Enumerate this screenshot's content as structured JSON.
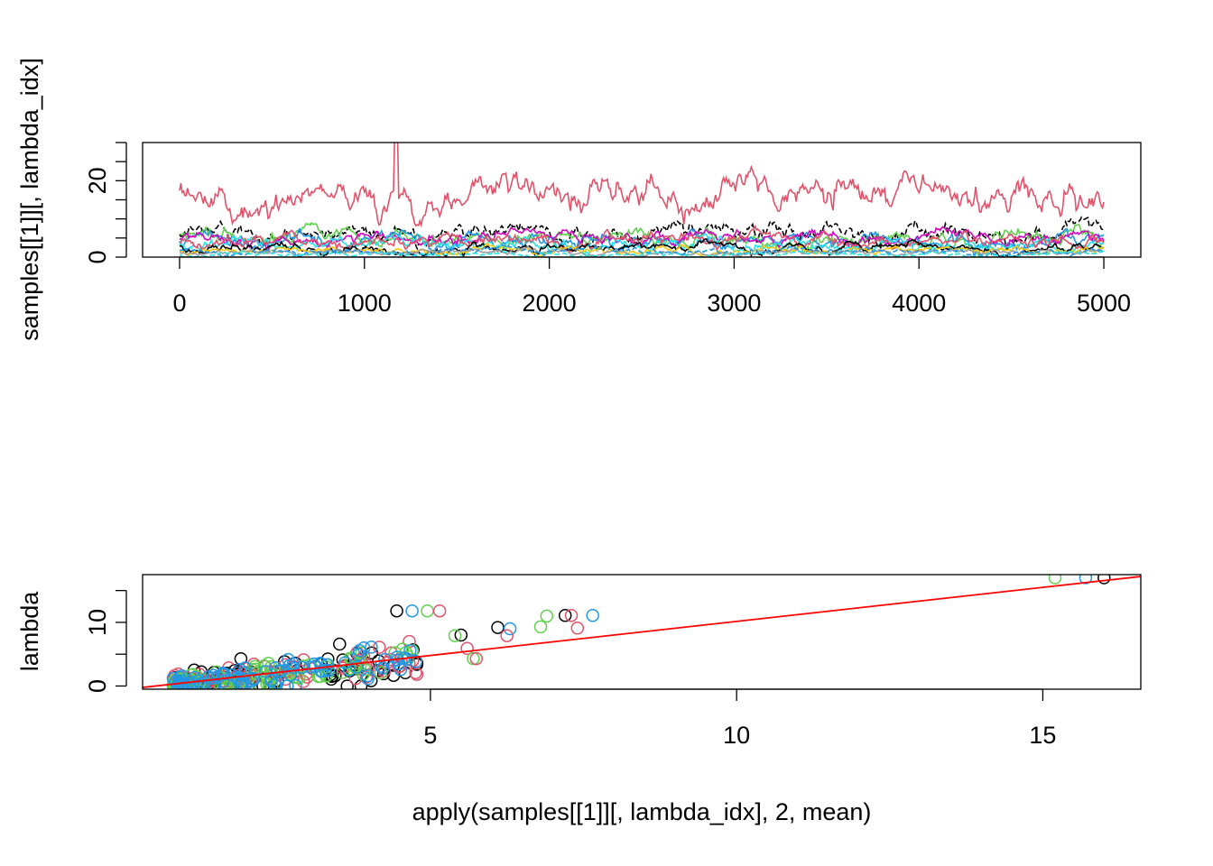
{
  "chart_data": [
    {
      "type": "line",
      "title": "",
      "xlabel": "",
      "ylabel": "samples[[1]][, lambda_idx]",
      "xlim": [
        -200,
        5200
      ],
      "ylim": [
        0,
        30
      ],
      "x_ticks": [
        0,
        1000,
        2000,
        3000,
        4000,
        5000
      ],
      "x_tick_labels": [
        "0",
        "1000",
        "2000",
        "3000",
        "4000",
        "5000"
      ],
      "y_ticks": [
        0,
        20
      ],
      "y_tick_labels": [
        "0",
        "20"
      ],
      "y_minor_ticks": [
        0,
        5,
        10,
        15,
        20,
        25,
        30
      ],
      "grid": false,
      "legend": "none",
      "iterations": 5000,
      "series": [
        {
          "color": "#DF536B",
          "dash": "solid",
          "mean": 15.5,
          "sd": 3.6,
          "min": 6.5,
          "max": 33,
          "peak_at": 1170
        },
        {
          "color": "#000000",
          "dash": "dashed",
          "mean": 6.4,
          "sd": 2.0,
          "min": 1.5,
          "max": 15
        },
        {
          "color": "#61D04F",
          "dash": "solid",
          "mean": 5.2,
          "sd": 1.8,
          "min": 0.5,
          "max": 12
        },
        {
          "color": "#2297E6",
          "dash": "solid",
          "mean": 4.4,
          "sd": 1.5,
          "min": 0.5,
          "max": 11
        },
        {
          "color": "#CD0BBC",
          "dash": "solid",
          "mean": 5.0,
          "sd": 1.4,
          "min": 0.5,
          "max": 11
        },
        {
          "color": "#28E2E5",
          "dash": "solid",
          "mean": 3.2,
          "sd": 1.2,
          "min": 0.2,
          "max": 8
        },
        {
          "color": "#DF536B",
          "dash": "solid",
          "mean": 4.2,
          "sd": 1.4,
          "min": 0.5,
          "max": 10
        },
        {
          "color": "#000000",
          "dash": "solid",
          "mean": 2.4,
          "sd": 1.0,
          "min": 0.2,
          "max": 7
        },
        {
          "color": "#F5C710",
          "dash": "solid",
          "mean": 1.8,
          "sd": 0.8,
          "min": 0.1,
          "max": 5
        },
        {
          "color": "#9E9E9E",
          "dash": "solid",
          "mean": 1.2,
          "sd": 0.6,
          "min": 0.1,
          "max": 4
        },
        {
          "color": "#2297E6",
          "dash": "dashed",
          "mean": 1.5,
          "sd": 0.7,
          "min": 0.1,
          "max": 5
        },
        {
          "color": "#28E2E5",
          "dash": "dashed",
          "mean": 0.8,
          "sd": 0.4,
          "min": 0.05,
          "max": 3
        }
      ]
    },
    {
      "type": "scatter",
      "title": "",
      "xlabel": "apply(samples[[1]][, lambda_idx], 2, mean)",
      "ylabel": "lambda",
      "xlim": [
        0.3,
        16.6
      ],
      "ylim": [
        -0.5,
        17.5
      ],
      "x_ticks": [
        5,
        10,
        15
      ],
      "x_tick_labels": [
        "5",
        "10",
        "15"
      ],
      "y_ticks": [
        0,
        10
      ],
      "y_tick_labels": [
        "0",
        "10"
      ],
      "y_minor_ticks": [
        0,
        5,
        10,
        15
      ],
      "grid": false,
      "legend": "none",
      "marker": "open-circle",
      "colors": [
        "#000000",
        "#DF536B",
        "#61D04F",
        "#2297E6"
      ],
      "regression_line": {
        "color": "#FF0000",
        "intercept": -0.55,
        "slope": 1.07
      },
      "outliers": [
        {
          "x": 4.45,
          "y": 11.8,
          "color": "#000000"
        },
        {
          "x": 4.7,
          "y": 11.8,
          "color": "#2297E6"
        },
        {
          "x": 4.95,
          "y": 11.8,
          "color": "#61D04F"
        },
        {
          "x": 5.15,
          "y": 11.8,
          "color": "#DF536B"
        },
        {
          "x": 6.1,
          "y": 9.2,
          "color": "#000000"
        },
        {
          "x": 6.3,
          "y": 9.0,
          "color": "#2297E6"
        },
        {
          "x": 6.25,
          "y": 7.9,
          "color": "#DF536B"
        },
        {
          "x": 6.8,
          "y": 9.3,
          "color": "#61D04F"
        },
        {
          "x": 6.9,
          "y": 11.0,
          "color": "#61D04F"
        },
        {
          "x": 7.2,
          "y": 11.1,
          "color": "#000000"
        },
        {
          "x": 7.3,
          "y": 11.1,
          "color": "#DF536B"
        },
        {
          "x": 7.4,
          "y": 9.1,
          "color": "#DF536B"
        },
        {
          "x": 7.65,
          "y": 11.1,
          "color": "#2297E6"
        },
        {
          "x": 5.5,
          "y": 8.0,
          "color": "#000000"
        },
        {
          "x": 5.4,
          "y": 7.9,
          "color": "#61D04F"
        },
        {
          "x": 5.6,
          "y": 5.9,
          "color": "#DF536B"
        },
        {
          "x": 5.7,
          "y": 4.3,
          "color": "#61D04F"
        },
        {
          "x": 5.75,
          "y": 4.3,
          "color": "#DF536B"
        },
        {
          "x": 15.2,
          "y": 17.0,
          "color": "#61D04F"
        },
        {
          "x": 15.7,
          "y": 17.0,
          "color": "#2297E6"
        },
        {
          "x": 16.0,
          "y": 17.0,
          "color": "#000000"
        }
      ],
      "cluster": {
        "x_range": [
          0.8,
          4.8
        ],
        "points_per_color": 90,
        "slope": 1.0,
        "spread": 1.3
      }
    }
  ]
}
